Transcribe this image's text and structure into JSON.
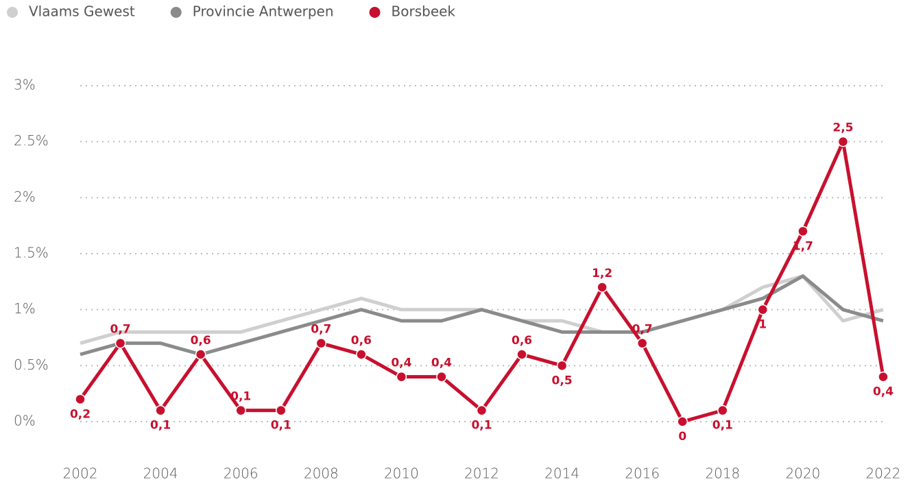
{
  "chart_data": {
    "type": "line",
    "x": [
      2002,
      2003,
      2004,
      2005,
      2006,
      2007,
      2008,
      2009,
      2010,
      2011,
      2012,
      2013,
      2014,
      2015,
      2016,
      2017,
      2018,
      2019,
      2020,
      2021,
      2022
    ],
    "xlim": [
      2002,
      2022
    ],
    "xticks": [
      2002,
      2004,
      2006,
      2008,
      2010,
      2012,
      2014,
      2016,
      2018,
      2020,
      2022
    ],
    "ylim": [
      0,
      3
    ],
    "yticks": [
      {
        "value": 0,
        "label": "0%"
      },
      {
        "value": 0.5,
        "label": "0.5%"
      },
      {
        "value": 1,
        "label": "1%"
      },
      {
        "value": 1.5,
        "label": "1.5%"
      },
      {
        "value": 2,
        "label": "2%"
      },
      {
        "value": 2.5,
        "label": "2.5%"
      },
      {
        "value": 3,
        "label": "3%"
      }
    ],
    "grid": true,
    "legend": "top-left",
    "series": [
      {
        "name": "Vlaams Gewest",
        "color": "#cfcfcf",
        "values": [
          0.7,
          0.8,
          0.8,
          0.8,
          0.8,
          0.9,
          1.0,
          1.1,
          1.0,
          1.0,
          1.0,
          0.9,
          0.9,
          0.8,
          0.8,
          0.9,
          1.0,
          1.2,
          1.3,
          0.9,
          1.0
        ]
      },
      {
        "name": "Provincie Antwerpen",
        "color": "#8a8b8c",
        "values": [
          0.6,
          0.7,
          0.7,
          0.6,
          0.7,
          0.8,
          0.9,
          1.0,
          0.9,
          0.9,
          1.0,
          0.9,
          0.8,
          0.8,
          0.8,
          0.9,
          1.0,
          1.1,
          1.3,
          1.0,
          0.9
        ]
      },
      {
        "name": "Borsbeek",
        "color": "#c8102e",
        "values": [
          0.2,
          0.7,
          0.1,
          0.6,
          0.1,
          0.1,
          0.7,
          0.6,
          0.4,
          0.4,
          0.1,
          0.6,
          0.5,
          1.2,
          0.7,
          0,
          0.1,
          1,
          1.7,
          2.5,
          0.4
        ],
        "value_labels": [
          "0,2",
          "0,7",
          "0,1",
          "0,6",
          "0,1",
          "0,1",
          "0,7",
          "0,6",
          "0,4",
          "0,4",
          "0,1",
          "0,6",
          "0,5",
          "1,2",
          "0,7",
          "0",
          "0,1",
          "1",
          "1,7",
          "2,5",
          "0,4"
        ]
      }
    ]
  }
}
